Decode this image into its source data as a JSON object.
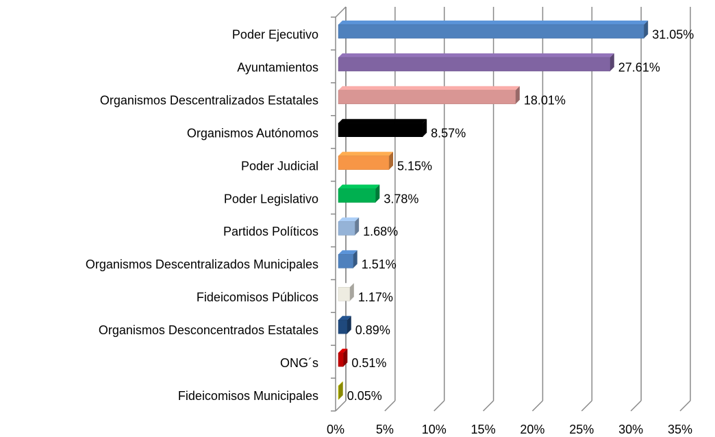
{
  "chart_data": {
    "type": "bar",
    "orientation": "horizontal",
    "categories": [
      "Poder Ejecutivo",
      "Ayuntamientos",
      "Organismos Descentralizados Estatales",
      "Organismos Autónomos",
      "Poder Judicial",
      "Poder Legislativo",
      "Partidos Políticos",
      "Organismos Descentralizados Municipales",
      "Fideicomisos Públicos",
      "Organismos Desconcentrados Estatales",
      "ONG´s",
      "Fideicomisos Municipales"
    ],
    "values": [
      31.05,
      27.61,
      18.01,
      8.57,
      5.15,
      3.78,
      1.68,
      1.51,
      1.17,
      0.89,
      0.51,
      0.05
    ],
    "value_labels": [
      "31.05%",
      "27.61%",
      "18.01%",
      "8.57%",
      "5.15%",
      "3.78%",
      "1.68%",
      "1.51%",
      "1.17%",
      "0.89%",
      "0.51%",
      "0.05%"
    ],
    "colors": [
      "#4f81bd",
      "#8064a2",
      "#d99694",
      "#000000",
      "#f79646",
      "#00b050",
      "#95b3d7",
      "#4f81bd",
      "#eeece1",
      "#1f497d",
      "#c00000",
      "#c4c400"
    ],
    "xlim": [
      0,
      35
    ],
    "xticks": [
      {
        "value": 0,
        "label": "0%"
      },
      {
        "value": 5,
        "label": "5%"
      },
      {
        "value": 10,
        "label": "10%"
      },
      {
        "value": 15,
        "label": "15%"
      },
      {
        "value": 20,
        "label": "20%"
      },
      {
        "value": 25,
        "label": "25%"
      },
      {
        "value": 30,
        "label": "30%"
      },
      {
        "value": 35,
        "label": "35%"
      }
    ],
    "grid": true
  }
}
